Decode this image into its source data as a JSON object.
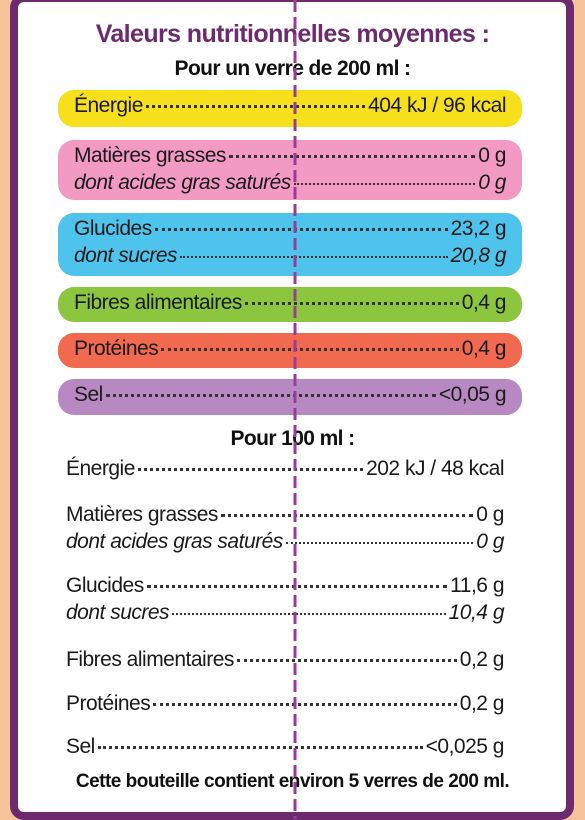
{
  "title": "Valeurs nutritionnelles moyennes :",
  "sections": [
    {
      "heading": "Pour un verre de 200 ml :",
      "rows": [
        {
          "label": "Énergie",
          "value": "404 kJ / 96 kcal"
        },
        {
          "label": "Matières grasses",
          "value": "0 g",
          "sub_label": "dont acides gras saturés",
          "sub_value": "0 g"
        },
        {
          "label": "Glucides",
          "value": "23,2 g",
          "sub_label": "dont sucres",
          "sub_value": "20,8 g"
        },
        {
          "label": "Fibres alimentaires",
          "value": "0,4 g"
        },
        {
          "label": "Protéines",
          "value": "0,4 g"
        },
        {
          "label": "Sel",
          "value": "<0,05 g"
        }
      ]
    },
    {
      "heading": "Pour 100 ml :",
      "rows": [
        {
          "label": "Énergie",
          "value": "202 kJ / 48 kcal"
        },
        {
          "label": "Matières grasses",
          "value": "0 g",
          "sub_label": "dont acides gras saturés",
          "sub_value": "0 g"
        },
        {
          "label": "Glucides",
          "value": "11,6 g",
          "sub_label": "dont sucres",
          "sub_value": "10,4 g"
        },
        {
          "label": "Fibres alimentaires",
          "value": "0,2 g"
        },
        {
          "label": "Protéines",
          "value": "0,2 g"
        },
        {
          "label": "Sel",
          "value": "<0,025 g"
        }
      ]
    }
  ],
  "footer": "Cette bouteille contient environ 5 verres de 200 ml."
}
